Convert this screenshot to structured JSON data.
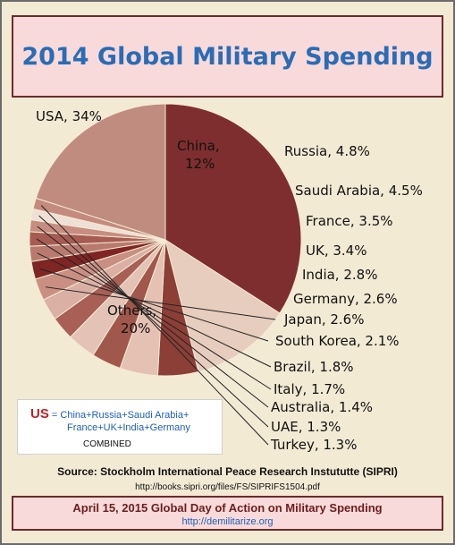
{
  "title": "2014 Global Military Spending",
  "chart_data": {
    "type": "pie",
    "title": "2014 Global Military Spending",
    "slices": [
      {
        "label": "USA, 34%",
        "value": 34,
        "color": "#7e2e2e"
      },
      {
        "label": "China, 12%",
        "value": 12,
        "color": "#e7cdbd"
      },
      {
        "label": "Russia, 4.8%",
        "value": 4.8,
        "color": "#8b3f36"
      },
      {
        "label": "Saudi Arabia, 4.5%",
        "value": 4.5,
        "color": "#e4c1b2"
      },
      {
        "label": "France, 3.5%",
        "value": 3.5,
        "color": "#a0574c"
      },
      {
        "label": "UK, 3.4%",
        "value": 3.4,
        "color": "#e2c3b5"
      },
      {
        "label": "India, 2.8%",
        "value": 2.8,
        "color": "#a85f55"
      },
      {
        "label": "Germany, 2.6%",
        "value": 2.6,
        "color": "#dbb0a4"
      },
      {
        "label": "Japan, 2.6%",
        "value": 2.6,
        "color": "#c98f82"
      },
      {
        "label": "South Korea, 2.1%",
        "value": 2.1,
        "color": "#7f2624"
      },
      {
        "label": "Brazil, 1.8%",
        "value": 1.8,
        "color": "#b87a6e"
      },
      {
        "label": "Italy, 1.7%",
        "value": 1.7,
        "color": "#a65c52"
      },
      {
        "label": "Australia, 1.4%",
        "value": 1.4,
        "color": "#c78d80"
      },
      {
        "label": "UAE, 1.3%",
        "value": 1.3,
        "color": "#efe0d6"
      },
      {
        "label": "Turkey, 1.3%",
        "value": 1.3,
        "color": "#c58a7e"
      },
      {
        "label": "Others, 20%",
        "value": 20,
        "color": "#c08c80"
      }
    ]
  },
  "us_box": {
    "us": "US",
    "line1": "= China+Russia+Saudi Arabia+",
    "line2": "France+UK+India+Germany",
    "line3": "COMBINED"
  },
  "source": "Source: Stockholm International Peace Research Instututte (SIPRI)",
  "source_url": "http://books.sipri.org/files/FS/SIPRIFS1504.pdf",
  "footer": {
    "line1": "April 15, 2015 Global Day of Action on Military Spending",
    "line2": "http://demilitarize.org"
  }
}
